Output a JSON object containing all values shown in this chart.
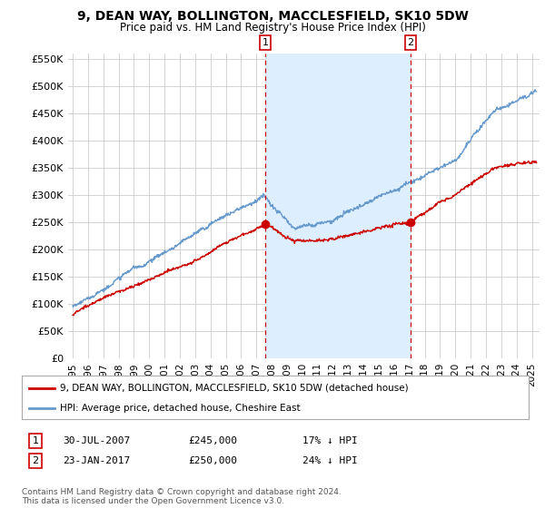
{
  "title": "9, DEAN WAY, BOLLINGTON, MACCLESFIELD, SK10 5DW",
  "subtitle": "Price paid vs. HM Land Registry's House Price Index (HPI)",
  "background_color": "#ffffff",
  "plot_bg_color": "#ffffff",
  "grid_color": "#cccccc",
  "red_line_color": "#cc0000",
  "blue_line_color": "#6699cc",
  "shade_color": "#ddeeff",
  "marker1_date_x": 2007.58,
  "marker2_date_x": 2017.07,
  "marker1_y": 245000,
  "marker2_y": 250000,
  "annotation1": {
    "label": "1",
    "date": "30-JUL-2007",
    "price": "£245,000",
    "pct": "17% ↓ HPI"
  },
  "annotation2": {
    "label": "2",
    "date": "23-JAN-2017",
    "price": "£250,000",
    "pct": "24% ↓ HPI"
  },
  "legend_line1": "9, DEAN WAY, BOLLINGTON, MACCLESFIELD, SK10 5DW (detached house)",
  "legend_line2": "HPI: Average price, detached house, Cheshire East",
  "footer": "Contains HM Land Registry data © Crown copyright and database right 2024.\nThis data is licensed under the Open Government Licence v3.0.",
  "ylim": [
    0,
    560000
  ],
  "xlim_start": 1994.7,
  "xlim_end": 2025.5
}
